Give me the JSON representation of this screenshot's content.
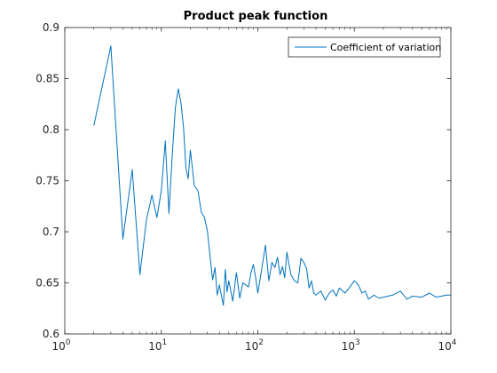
{
  "chart_data": {
    "type": "line",
    "title": "Product peak function",
    "xlabel": "",
    "ylabel": "",
    "xscale": "log",
    "xlim": [
      1,
      10000
    ],
    "ylim": [
      0.6,
      0.9
    ],
    "x_ticks": [
      {
        "base": "10",
        "exp": "0",
        "value": 1
      },
      {
        "base": "10",
        "exp": "1",
        "value": 10
      },
      {
        "base": "10",
        "exp": "2",
        "value": 100
      },
      {
        "base": "10",
        "exp": "3",
        "value": 1000
      },
      {
        "base": "10",
        "exp": "4",
        "value": 10000
      }
    ],
    "y_ticks": [
      "0.6",
      "0.65",
      "0.7",
      "0.75",
      "0.8",
      "0.85",
      "0.9"
    ],
    "grid": false,
    "legend": {
      "position": "top-right"
    },
    "series": [
      {
        "name": "Coefficient of variation",
        "color": "#0072BD",
        "x": [
          2,
          3,
          4,
          5,
          6,
          7,
          8,
          9,
          10,
          11,
          12,
          13,
          14,
          15,
          16,
          17,
          18,
          19,
          20,
          22,
          24,
          26,
          28,
          30,
          32,
          34,
          36,
          38,
          40,
          42,
          44,
          46,
          48,
          50,
          55,
          60,
          65,
          70,
          75,
          80,
          85,
          90,
          95,
          100,
          110,
          120,
          130,
          140,
          150,
          160,
          170,
          180,
          190,
          200,
          220,
          240,
          260,
          280,
          300,
          320,
          340,
          360,
          380,
          400,
          450,
          500,
          550,
          600,
          650,
          700,
          800,
          900,
          1000,
          1100,
          1200,
          1300,
          1400,
          1600,
          1800,
          2000,
          2500,
          3000,
          3500,
          4000,
          5000,
          6000,
          7000,
          8000,
          9000,
          10000
        ],
        "values": [
          0.804,
          0.882,
          0.693,
          0.761,
          0.658,
          0.711,
          0.736,
          0.714,
          0.74,
          0.789,
          0.718,
          0.776,
          0.822,
          0.84,
          0.826,
          0.802,
          0.762,
          0.752,
          0.78,
          0.745,
          0.74,
          0.719,
          0.714,
          0.701,
          0.676,
          0.653,
          0.665,
          0.638,
          0.648,
          0.637,
          0.628,
          0.663,
          0.641,
          0.652,
          0.632,
          0.66,
          0.635,
          0.65,
          0.648,
          0.646,
          0.66,
          0.668,
          0.655,
          0.64,
          0.664,
          0.687,
          0.652,
          0.67,
          0.665,
          0.675,
          0.658,
          0.666,
          0.655,
          0.68,
          0.658,
          0.652,
          0.65,
          0.674,
          0.67,
          0.664,
          0.645,
          0.652,
          0.64,
          0.638,
          0.642,
          0.633,
          0.64,
          0.643,
          0.637,
          0.645,
          0.64,
          0.646,
          0.652,
          0.648,
          0.64,
          0.642,
          0.634,
          0.638,
          0.635,
          0.636,
          0.638,
          0.642,
          0.634,
          0.637,
          0.636,
          0.64,
          0.636,
          0.637,
          0.638,
          0.638
        ]
      }
    ]
  }
}
